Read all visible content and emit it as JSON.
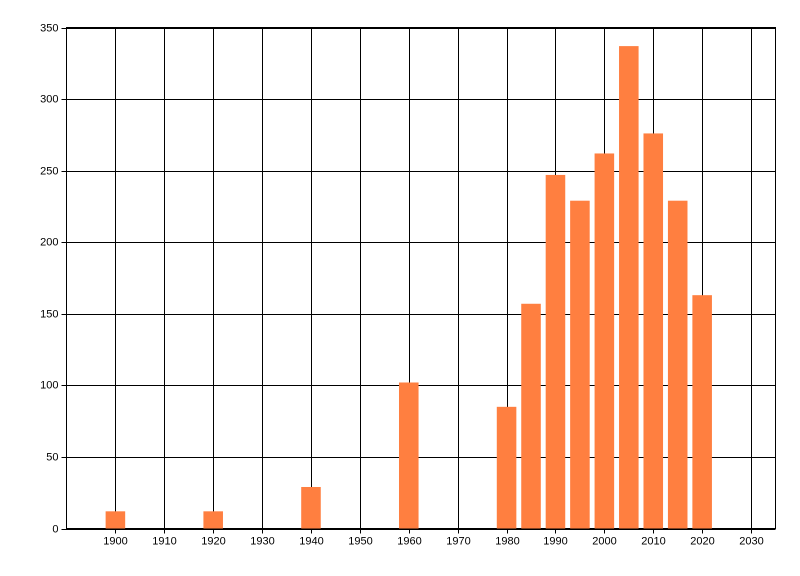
{
  "chart_data": {
    "type": "bar",
    "x": [
      1900,
      1920,
      1940,
      1960,
      1980,
      1985,
      1990,
      1995,
      2000,
      2005,
      2010,
      2015,
      2020
    ],
    "values": [
      12,
      12,
      29,
      102,
      85,
      157,
      247,
      229,
      262,
      337,
      276,
      229,
      163
    ],
    "color": "#ff7f40",
    "xlim": [
      1890,
      2035
    ],
    "xticks": [
      1900,
      1910,
      1920,
      1930,
      1940,
      1950,
      1960,
      1970,
      1980,
      1990,
      2000,
      2010,
      2020,
      2030
    ],
    "ylim": [
      0,
      350
    ],
    "yticks": [
      0,
      50,
      100,
      150,
      200,
      250,
      300,
      350
    ],
    "grid": true
  }
}
